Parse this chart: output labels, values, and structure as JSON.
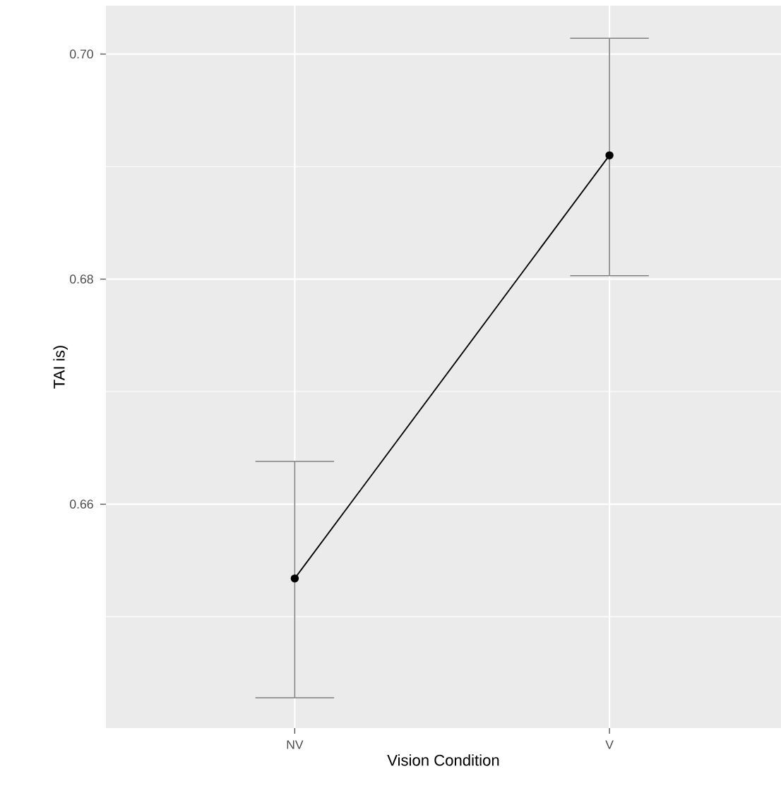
{
  "chart_data": {
    "type": "line",
    "xlabel": "Vision Condition",
    "ylabel": "TAI      is)",
    "categories": [
      "NV",
      "V"
    ],
    "color": "#000000",
    "values": [
      0.6534,
      0.691
    ],
    "errors": [
      [
        0.6428,
        0.6638
      ],
      [
        0.6803,
        0.7014
      ]
    ],
    "ylim": [
      0.6401,
      0.7043
    ],
    "yticks": [
      {
        "value": 0.65,
        "label": null
      },
      0.66,
      {
        "value": 0.67,
        "label": null
      },
      0.68,
      {
        "value": 0.69,
        "label": null
      },
      {
        "value": 0.7,
        "label": "0.70"
      }
    ],
    "grid": true,
    "marker": "circle",
    "line_style": "solid"
  }
}
